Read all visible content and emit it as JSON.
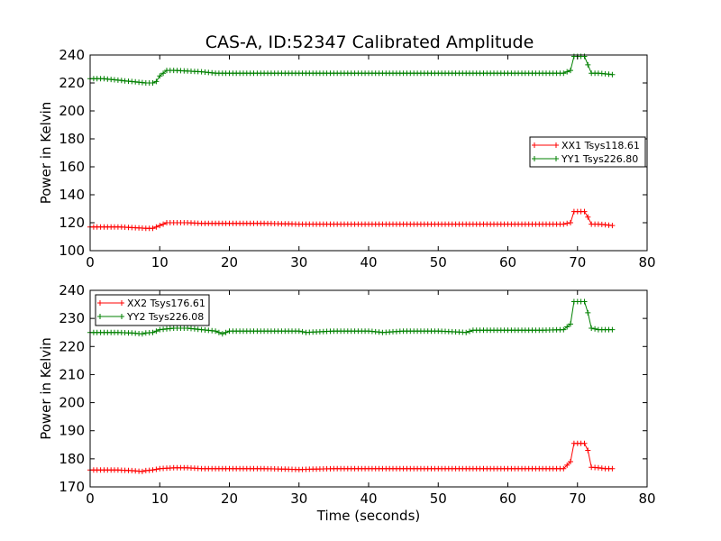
{
  "figure": {
    "title": "CAS-A, ID:52347 Calibrated Amplitude"
  },
  "chart_data": [
    {
      "type": "line",
      "title": "CAS-A, ID:52347 Calibrated Amplitude",
      "xlabel": "",
      "ylabel": "Power in Kelvin",
      "xlim": [
        0,
        80
      ],
      "ylim": [
        100,
        240
      ],
      "xticks": [
        0,
        10,
        20,
        30,
        40,
        50,
        60,
        70,
        80
      ],
      "yticks": [
        100,
        120,
        140,
        160,
        180,
        200,
        220,
        240
      ],
      "grid": false,
      "legend_position": "center-right",
      "series": [
        {
          "name": "XX1 Tsys118.61",
          "color": "#ff0000",
          "marker": "plus",
          "x": [
            0,
            2,
            4,
            6,
            8,
            9,
            10,
            11,
            12,
            14,
            16,
            18,
            20,
            25,
            30,
            35,
            40,
            45,
            50,
            55,
            60,
            65,
            68,
            69,
            69.5,
            70,
            71,
            71.5,
            72,
            73,
            74,
            75
          ],
          "y": [
            117,
            117,
            117,
            116.5,
            116,
            116,
            118,
            120,
            120,
            120,
            119.5,
            119.5,
            119.5,
            119.5,
            119,
            119,
            119,
            119,
            119,
            119,
            119,
            119,
            119,
            120,
            128,
            128,
            128,
            124,
            119,
            119,
            118.5,
            118
          ]
        },
        {
          "name": "YY1 Tsys226.80",
          "color": "#008000",
          "marker": "plus",
          "x": [
            0,
            2,
            4,
            6,
            8,
            9,
            9.5,
            10,
            10.5,
            11,
            12,
            14,
            16,
            18,
            20,
            25,
            30,
            35,
            40,
            45,
            50,
            55,
            60,
            65,
            68,
            69,
            69.5,
            70,
            71,
            71.5,
            72,
            73,
            74,
            75
          ],
          "y": [
            223,
            223,
            222,
            221,
            220,
            220,
            221,
            225,
            227,
            229,
            229,
            228.5,
            228,
            227,
            227,
            227,
            227,
            227,
            227,
            227,
            227,
            227,
            227,
            227,
            227,
            229,
            239,
            239,
            239,
            233,
            227,
            227,
            226.5,
            226
          ]
        }
      ]
    },
    {
      "type": "line",
      "title": "",
      "xlabel": "Time (seconds)",
      "ylabel": "Power in Kelvin",
      "xlim": [
        0,
        80
      ],
      "ylim": [
        170,
        240
      ],
      "xticks": [
        0,
        10,
        20,
        30,
        40,
        50,
        60,
        70,
        80
      ],
      "yticks": [
        170,
        180,
        190,
        200,
        210,
        220,
        230,
        240
      ],
      "grid": false,
      "legend_position": "upper-left",
      "series": [
        {
          "name": "XX2 Tsys176.61",
          "color": "#ff0000",
          "marker": "plus",
          "x": [
            0,
            2,
            4,
            6,
            7.5,
            8,
            9,
            10,
            12,
            14,
            16,
            18,
            20,
            25,
            30,
            35,
            40,
            45,
            50,
            55,
            60,
            65,
            68,
            69,
            69.5,
            70,
            71,
            71.5,
            72,
            73,
            74,
            75
          ],
          "y": [
            176,
            176,
            176,
            175.8,
            175.5,
            175.8,
            176,
            176.5,
            176.8,
            176.8,
            176.5,
            176.5,
            176.5,
            176.5,
            176.2,
            176.5,
            176.5,
            176.5,
            176.5,
            176.5,
            176.5,
            176.5,
            176.5,
            179,
            185.5,
            185.5,
            185.5,
            183,
            177,
            176.8,
            176.5,
            176.5
          ]
        },
        {
          "name": "YY2 Tsys226.08",
          "color": "#008000",
          "marker": "plus",
          "x": [
            0,
            2,
            4,
            6,
            7.5,
            8,
            9,
            10,
            12,
            14,
            16,
            18,
            19,
            20,
            25,
            30,
            31,
            35,
            40,
            42,
            45,
            50,
            54,
            55,
            60,
            65,
            68,
            69,
            69.5,
            70,
            71,
            71.5,
            72,
            73,
            74,
            75
          ],
          "y": [
            225,
            225,
            225,
            224.8,
            224.5,
            224.8,
            225,
            226,
            226.5,
            226.5,
            226,
            225.5,
            224.5,
            225.5,
            225.5,
            225.5,
            225,
            225.5,
            225.5,
            225,
            225.5,
            225.5,
            225,
            225.8,
            225.8,
            225.8,
            226,
            228,
            236,
            236,
            236,
            232,
            226.5,
            226,
            226,
            226
          ]
        }
      ]
    }
  ]
}
